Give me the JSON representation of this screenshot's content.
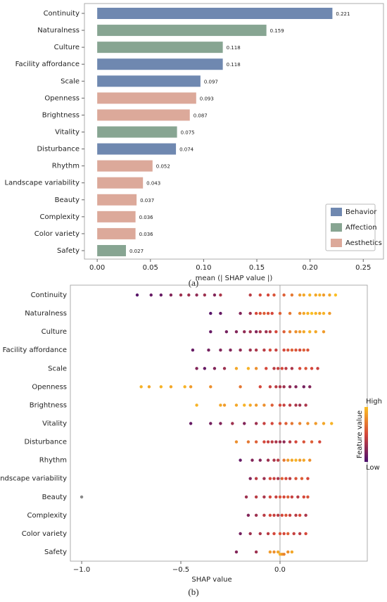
{
  "chart_data": [
    {
      "type": "hbar",
      "caption": "(a)",
      "x_label": "mean (| SHAP value |)",
      "categories": [
        "Continuity",
        "Naturalness",
        "Culture",
        "Facility affordance",
        "Scale",
        "Openness",
        "Brightness",
        "Vitality",
        "Disturbance",
        "Rhythm",
        "Landscape variability",
        "Beauty",
        "Complexity",
        "Color variety",
        "Safety"
      ],
      "series": [
        {
          "name": "Behavior",
          "color": "#6f88b0",
          "values": [
            0.221,
            null,
            null,
            0.118,
            0.097,
            null,
            null,
            null,
            0.074,
            null,
            null,
            null,
            null,
            null,
            null
          ]
        },
        {
          "name": "Affection",
          "color": "#87a592",
          "values": [
            null,
            0.159,
            0.118,
            null,
            null,
            null,
            null,
            0.075,
            null,
            null,
            null,
            null,
            null,
            null,
            0.027
          ]
        },
        {
          "name": "Aesthetics",
          "color": "#dca99a",
          "values": [
            null,
            null,
            null,
            null,
            null,
            0.093,
            0.087,
            null,
            null,
            0.052,
            0.043,
            0.037,
            0.036,
            0.036,
            null
          ]
        }
      ],
      "xlim": [
        -0.012,
        0.269
      ],
      "xticks": [
        {
          "value": 0,
          "label": "0.00"
        },
        0.05,
        {
          "value": 0.1,
          "label": "0.10"
        },
        0.15,
        {
          "value": 0.2,
          "label": "0.20"
        },
        0.25
      ],
      "legend": "lower right"
    },
    {
      "type": "beeswarm",
      "caption": "(b)",
      "x_label": "SHAP value",
      "categories": [
        "Continuity",
        "Naturalness",
        "Culture",
        "Facility affordance",
        "Scale",
        "Openness",
        "Brightness",
        "Vitality",
        "Disturbance",
        "Rhythm",
        "Landscape variability",
        "Beauty",
        "Complexity",
        "Color variety",
        "Safety"
      ],
      "values": [
        [
          -0.72,
          -0.65,
          -0.6,
          -0.55,
          -0.5,
          -0.46,
          -0.42,
          -0.38,
          -0.33,
          -0.3,
          -0.15,
          -0.1,
          -0.06,
          -0.03,
          0.02,
          0.06,
          0.1,
          0.12,
          0.15,
          0.18,
          0.2,
          0.22,
          0.25,
          0.28
        ],
        [
          -0.35,
          -0.3,
          -0.2,
          -0.15,
          -0.12,
          -0.1,
          -0.08,
          -0.06,
          -0.04,
          0.0,
          0.05,
          0.1,
          0.12,
          0.14,
          0.16,
          0.18,
          0.2,
          0.22,
          0.25
        ],
        [
          -0.35,
          -0.27,
          -0.22,
          -0.18,
          -0.15,
          -0.12,
          -0.1,
          -0.07,
          -0.05,
          -0.02,
          0.02,
          0.05,
          0.08,
          0.1,
          0.12,
          0.15,
          0.18,
          0.22
        ],
        [
          -0.44,
          -0.36,
          -0.3,
          -0.25,
          -0.2,
          -0.15,
          -0.12,
          -0.08,
          -0.05,
          -0.02,
          0.02,
          0.04,
          0.06,
          0.08,
          0.1,
          0.12,
          0.14
        ],
        [
          -0.42,
          -0.38,
          -0.33,
          -0.28,
          -0.22,
          -0.16,
          -0.12,
          -0.07,
          -0.03,
          -0.01,
          0.01,
          0.03,
          0.06,
          0.1,
          0.13,
          0.16,
          0.19
        ],
        [
          -0.7,
          -0.66,
          -0.6,
          -0.55,
          -0.48,
          -0.45,
          -0.35,
          -0.2,
          -0.1,
          -0.05,
          -0.02,
          0.0,
          0.02,
          0.05,
          0.08,
          0.12,
          0.15
        ],
        [
          -0.42,
          -0.3,
          -0.28,
          -0.22,
          -0.18,
          -0.15,
          -0.12,
          -0.08,
          -0.04,
          0.0,
          0.02,
          0.05,
          0.08,
          0.1,
          0.13
        ],
        [
          -0.45,
          -0.35,
          -0.3,
          -0.24,
          -0.18,
          -0.12,
          -0.08,
          -0.04,
          0.0,
          0.03,
          0.06,
          0.1,
          0.14,
          0.18,
          0.22,
          0.26
        ],
        [
          -0.22,
          -0.16,
          -0.12,
          -0.08,
          -0.06,
          -0.04,
          -0.02,
          0.0,
          0.02,
          0.05,
          0.08,
          0.12,
          0.16,
          0.2
        ],
        [
          -0.2,
          -0.14,
          -0.1,
          -0.06,
          -0.03,
          -0.01,
          0.02,
          0.04,
          0.06,
          0.08,
          0.1,
          0.12,
          0.15
        ],
        [
          -0.15,
          -0.12,
          -0.08,
          -0.05,
          -0.03,
          -0.01,
          0.01,
          0.03,
          0.05,
          0.08,
          0.11,
          0.14
        ],
        [
          -1.0,
          -0.17,
          -0.12,
          -0.08,
          -0.05,
          -0.02,
          0.0,
          0.02,
          0.04,
          0.06,
          0.09,
          0.12,
          0.14
        ],
        [
          -0.16,
          -0.12,
          -0.08,
          -0.05,
          -0.03,
          -0.01,
          0.01,
          0.03,
          0.05,
          0.08,
          0.1,
          0.13
        ],
        [
          -0.2,
          -0.15,
          -0.1,
          -0.06,
          -0.03,
          0.0,
          0.02,
          0.04,
          0.07,
          0.1,
          0.13
        ],
        [
          -0.22,
          -0.12,
          -0.05,
          -0.03,
          -0.01,
          0.0,
          0.01,
          0.02,
          0.04,
          0.06
        ]
      ],
      "feature_values": [
        [
          0.05,
          0.1,
          0.1,
          0.2,
          0.3,
          0.3,
          0.25,
          0.3,
          0.2,
          0.35,
          0.4,
          0.5,
          0.5,
          0.55,
          0.6,
          0.7,
          0.85,
          0.9,
          0.95,
          0.9,
          0.95,
          0.85,
          0.9,
          1.0
        ],
        [
          0.05,
          0.1,
          0.2,
          0.3,
          0.5,
          0.55,
          0.6,
          0.55,
          0.5,
          0.6,
          0.7,
          0.8,
          0.9,
          0.95,
          1.0,
          0.95,
          0.9,
          0.95,
          0.85
        ],
        [
          0.1,
          0.15,
          0.2,
          0.25,
          0.3,
          0.2,
          0.35,
          0.3,
          0.4,
          0.5,
          0.6,
          0.75,
          0.8,
          0.85,
          0.9,
          0.95,
          0.9,
          0.85
        ],
        [
          0.1,
          0.15,
          0.2,
          0.2,
          0.25,
          0.3,
          0.35,
          0.4,
          0.5,
          0.45,
          0.5,
          0.55,
          0.6,
          0.55,
          0.5,
          0.6,
          0.55
        ],
        [
          0.2,
          0.1,
          0.2,
          0.3,
          0.9,
          0.95,
          0.8,
          0.5,
          0.4,
          0.45,
          0.5,
          0.4,
          0.35,
          0.5,
          0.55,
          0.5,
          0.45
        ],
        [
          0.95,
          0.9,
          0.95,
          0.9,
          0.95,
          0.85,
          0.8,
          0.7,
          0.5,
          0.45,
          0.4,
          0.35,
          0.3,
          0.25,
          0.2,
          0.15,
          0.2
        ],
        [
          0.95,
          0.9,
          0.85,
          0.9,
          0.95,
          0.9,
          0.85,
          0.8,
          0.6,
          0.5,
          0.45,
          0.4,
          0.35,
          0.3,
          0.35
        ],
        [
          0.1,
          0.15,
          0.2,
          0.3,
          0.2,
          0.3,
          0.45,
          0.5,
          0.55,
          0.6,
          0.7,
          0.75,
          0.8,
          0.85,
          0.9,
          0.95
        ],
        [
          0.8,
          0.7,
          0.6,
          0.5,
          0.45,
          0.4,
          0.35,
          0.3,
          0.25,
          0.4,
          0.5,
          0.55,
          0.6,
          0.5
        ],
        [
          0.1,
          0.2,
          0.2,
          0.3,
          0.35,
          0.4,
          0.7,
          0.85,
          0.9,
          0.95,
          0.85,
          0.9,
          0.8
        ],
        [
          0.2,
          0.4,
          0.3,
          0.5,
          0.45,
          0.35,
          0.6,
          0.5,
          0.4,
          0.55,
          0.6,
          0.5
        ],
        [
          null,
          0.3,
          0.4,
          0.35,
          0.5,
          0.45,
          0.55,
          0.5,
          0.6,
          0.45,
          0.4,
          0.5,
          0.55
        ],
        [
          0.2,
          0.3,
          0.4,
          0.5,
          0.45,
          0.4,
          0.5,
          0.55,
          0.45,
          0.4,
          0.5,
          0.35
        ],
        [
          0.15,
          0.3,
          0.35,
          0.4,
          0.5,
          0.55,
          0.5,
          0.6,
          0.45,
          0.4,
          0.5
        ],
        [
          0.2,
          0.3,
          0.85,
          0.8,
          0.9,
          0.95,
          0.85,
          0.75,
          0.8,
          0.9
        ]
      ],
      "xlim": [
        -1.057,
        0.44
      ],
      "xticks": [
        {
          "value": -1.0,
          "label": "−1.0"
        },
        {
          "value": -0.5,
          "label": "−0.5"
        },
        {
          "value": 0.0,
          "label": "0.0"
        }
      ],
      "missing_color": "#888888",
      "colorbar": {
        "label": "Feature value",
        "high": "High",
        "low": "Low",
        "colors": [
          "#4a0f6e",
          "#d5473a",
          "#fbbf24"
        ]
      }
    }
  ]
}
